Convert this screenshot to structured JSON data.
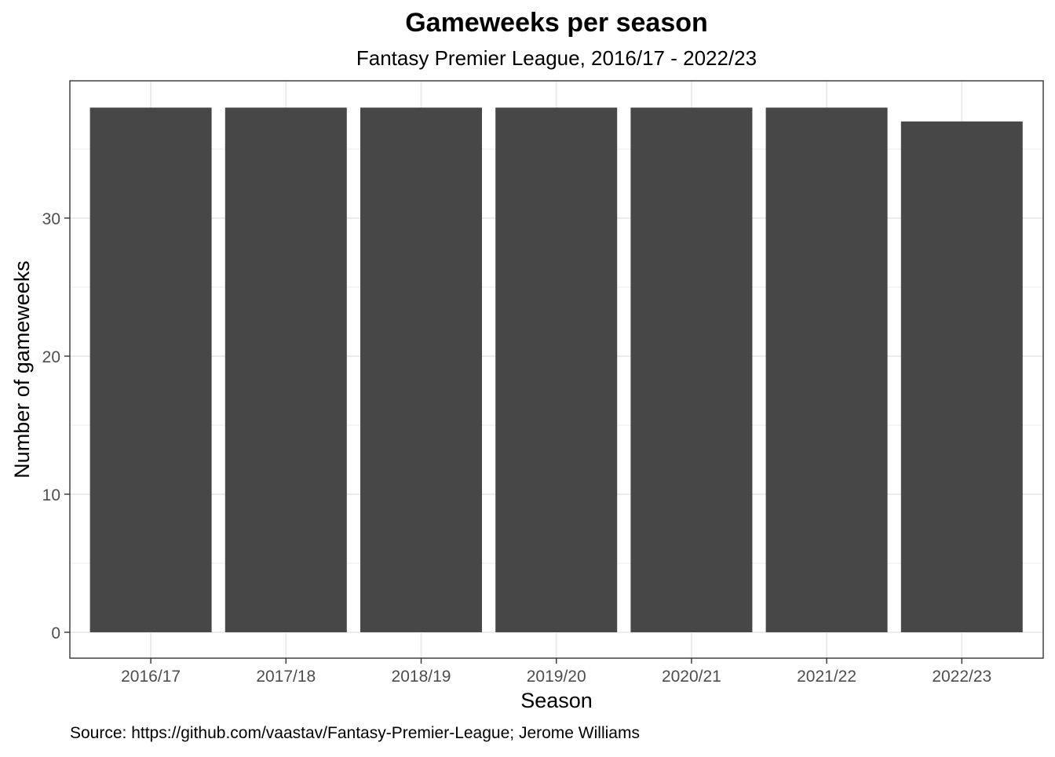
{
  "chart_data": {
    "type": "bar",
    "title": "Gameweeks per season",
    "subtitle": "Fantasy Premier League, 2016/17 - 2022/23",
    "caption": "Source: https://github.com/vaastav/Fantasy-Premier-League; Jerome Williams",
    "xlabel": "Season",
    "ylabel": "Number of gameweeks",
    "categories": [
      "2016/17",
      "2017/18",
      "2018/19",
      "2019/20",
      "2020/21",
      "2021/22",
      "2022/23"
    ],
    "values": [
      38,
      38,
      38,
      38,
      38,
      38,
      37
    ],
    "ylim": [
      0,
      38
    ],
    "yticks": [
      0,
      10,
      20,
      30
    ],
    "grid": true,
    "legend": "none",
    "colors": {
      "bar": "#474747",
      "grid": "#ebebeb",
      "panel_border": "#333333",
      "text": "#000000",
      "tick_text": "#4d4d4d"
    }
  }
}
